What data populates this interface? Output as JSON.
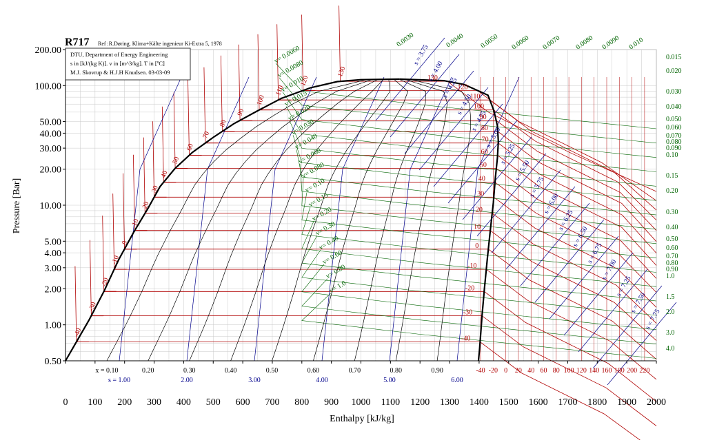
{
  "title": "R717",
  "reference": "Ref :R.Døring. Klima+Kälte ingenieur Ki-Extra 5, 1978",
  "info_lines": [
    "DTU, Department of Energy Engineering",
    "s in [kJ/(kg K)]. v in [m^3/kg]. T in [ºC]",
    "M.J. Skovrup & H.J.H Knudsen. 03-03-09"
  ],
  "colors": {
    "temperature": "#b00000",
    "volume": "#006400",
    "entropy": "#00008b",
    "quality": "#000000",
    "saturation": "#000000"
  },
  "chart_data": {
    "type": "line",
    "chart_kind": "pressure-enthalpy diagram (log p - h)",
    "xlabel": "Enthalpy [kJ/kg]",
    "ylabel": "Pressure [Bar]",
    "xlim": [
      0,
      2000
    ],
    "ylim": [
      0.5,
      200
    ],
    "yscale": "log",
    "grid": true,
    "x_ticks": [
      "0",
      "100",
      "200",
      "300",
      "400",
      "500",
      "600",
      "700",
      "800",
      "900",
      "1000",
      "1100",
      "1200",
      "1300",
      "1400",
      "1500",
      "1600",
      "1700",
      "1800",
      "1900",
      "2000"
    ],
    "x_tick_values": [
      0,
      100,
      200,
      300,
      400,
      500,
      600,
      700,
      800,
      900,
      1000,
      1100,
      1200,
      1300,
      1400,
      1500,
      1600,
      1700,
      1800,
      1900,
      2000
    ],
    "y_ticks": [
      {
        "value": 0.5,
        "label": "0.50"
      },
      {
        "value": 1,
        "label": "1.00"
      },
      {
        "value": 2,
        "label": "2.00"
      },
      {
        "value": 3,
        "label": "3.00"
      },
      {
        "value": 4,
        "label": "4.00"
      },
      {
        "value": 5,
        "label": "5.00"
      },
      {
        "value": 10,
        "label": "10.00"
      },
      {
        "value": 20,
        "label": "20.00"
      },
      {
        "value": 30,
        "label": "30.00"
      },
      {
        "value": 40,
        "label": "40.00"
      },
      {
        "value": 50,
        "label": "50.00"
      },
      {
        "value": 100,
        "label": "100.00"
      },
      {
        "value": 200,
        "label": "200.00"
      }
    ],
    "saturation_dome": {
      "liquid": [
        [
          0,
          0.5
        ],
        [
          80,
          1.1
        ],
        [
          130,
          1.9
        ],
        [
          180,
          3.5
        ],
        [
          230,
          5.9
        ],
        [
          280,
          9.5
        ],
        [
          320,
          14.3
        ],
        [
          370,
          20.2
        ],
        [
          430,
          27.7
        ],
        [
          500,
          36.9
        ],
        [
          570,
          48.0
        ],
        [
          650,
          61.5
        ],
        [
          730,
          78.0
        ],
        [
          830,
          96.0
        ],
        [
          920,
          108
        ],
        [
          1000,
          112.0
        ]
      ],
      "critical_point": [
        1130,
        113.3
      ],
      "vapor": [
        [
          1130,
          113.3
        ],
        [
          1280,
          110
        ],
        [
          1350,
          102
        ],
        [
          1430,
          83
        ],
        [
          1450,
          62
        ],
        [
          1462,
          46
        ],
        [
          1465,
          34
        ],
        [
          1462,
          25
        ],
        [
          1455,
          17
        ],
        [
          1448,
          10.4
        ],
        [
          1438,
          6.2
        ],
        [
          1428,
          3.6
        ],
        [
          1418,
          2.0
        ],
        [
          1410,
          1.2
        ],
        [
          1402,
          0.65
        ],
        [
          1398,
          0.5
        ]
      ]
    },
    "quality_lines": [
      "x = 0.10",
      "0.20",
      "0.30",
      "0.40",
      "0.50",
      "0.60",
      "0.70",
      "0.80",
      "0.90"
    ],
    "quality_values": [
      0.1,
      0.2,
      0.3,
      0.4,
      0.5,
      0.6,
      0.7,
      0.8,
      0.9
    ],
    "isotherms_C": [
      "-40",
      "-30",
      "-20",
      "-10",
      "0",
      "10",
      "20",
      "30",
      "40",
      "50",
      "60",
      "70",
      "80",
      "90",
      "100",
      "110",
      "120",
      "130"
    ],
    "isotherm_values": [
      -40,
      -30,
      -20,
      -10,
      0,
      10,
      20,
      30,
      40,
      50,
      60,
      70,
      80,
      90,
      100,
      110,
      120,
      130
    ],
    "isotherm_sat_pressures": [
      0.72,
      1.19,
      1.9,
      2.91,
      4.29,
      6.15,
      8.57,
      11.67,
      15.55,
      20.33,
      26.14,
      33.11,
      41.41,
      51.17,
      62.56,
      75.8,
      91.0,
      108.5
    ],
    "superheat_isotherm_labels": [
      "-40",
      "-20",
      "0",
      "20",
      "40",
      "60",
      "80",
      "100",
      "120",
      "140",
      "160",
      "180",
      "200",
      "220"
    ],
    "isochores_m3kg": [
      "0.0030",
      "0.0040",
      "0.0050",
      "0.0060",
      "0.0070",
      "0.0080",
      "0.0090",
      "0.010",
      "0.015",
      "0.020",
      "0.030",
      "0.040",
      "0.050",
      "0.060",
      "0.070",
      "0.080",
      "0.090",
      "0.10",
      "0.15",
      "0.20",
      "0.30",
      "0.40",
      "0.50",
      "0.60",
      "0.70",
      "0.80",
      "0.90",
      "1.0",
      "1.5",
      "2.0",
      "3.0",
      "4.0"
    ],
    "dome_isochore_labels": [
      "v= 0.0060",
      "v= 0.0080",
      "v= 0.010",
      "v= 0.015",
      "v= 0.020",
      "v= 0.030",
      "v= 0.040",
      "v= 0.060",
      "v= 0.080",
      "v= 0.10",
      "v= 0.15",
      "v= 0.20",
      "v= 0.30",
      "v= 0.40",
      "v= 0.60",
      "v= 0.80",
      "v= 1.0"
    ],
    "isentropes_kJkgK": [
      "s = 1.00",
      "2.00",
      "3.00",
      "4.00",
      "5.00",
      "6.00"
    ],
    "isentrope_values": [
      1,
      2,
      3,
      4,
      5,
      6
    ],
    "upper_isentropes": [
      "s = 3.75",
      "s = 4.00",
      "s = 4.25",
      "s = 4.50",
      "s = 4.75",
      "s = 5.00",
      "s = 5.25",
      "s = 5.50",
      "s = 5.75",
      "s = 6.00",
      "s = 6.25",
      "s = 6.50",
      "s = 6.75",
      "s = 7.00",
      "s = 7.25",
      "s = 7.50",
      "s = 7.75"
    ]
  }
}
